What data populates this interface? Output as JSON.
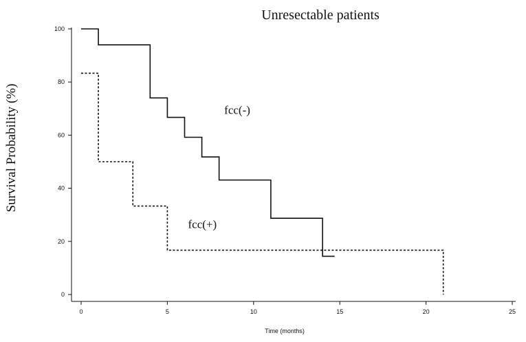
{
  "chart_data": {
    "type": "line",
    "title": "Unresectable patients",
    "xlabel": "Time (months)",
    "ylabel": "Survival Probability (%)",
    "xlim": [
      0,
      25
    ],
    "ylim": [
      0,
      100
    ],
    "xticks": [
      0,
      5,
      10,
      15,
      20,
      25
    ],
    "yticks": [
      0,
      20,
      40,
      60,
      80,
      100
    ],
    "grid": false,
    "step": true,
    "series": [
      {
        "name": "fcc(-)",
        "style": "solid",
        "color": "#111111",
        "x": [
          0,
          1,
          4,
          5,
          6,
          7,
          8,
          11,
          14,
          14.7
        ],
        "y": [
          100,
          94,
          74,
          66.7,
          59.2,
          51.8,
          43.1,
          28.7,
          14.4,
          14.4
        ]
      },
      {
        "name": "fcc(+)",
        "style": "dashed",
        "color": "#111111",
        "x": [
          0,
          1,
          3,
          5,
          21,
          21
        ],
        "y": [
          83.3,
          50,
          33.3,
          16.7,
          16.7,
          0
        ]
      }
    ],
    "annotations": [
      {
        "text": "fcc(-)",
        "x": 8.3,
        "y": 68
      },
      {
        "text": "fcc(+)",
        "x": 6.2,
        "y": 25
      }
    ]
  }
}
